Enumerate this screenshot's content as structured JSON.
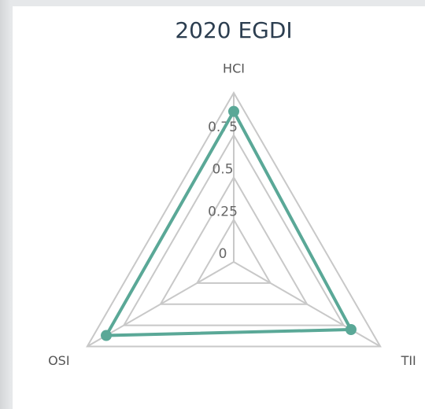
{
  "chart_data": {
    "type": "radar",
    "title": "2020 EGDI",
    "categories": [
      "HCI",
      "TII",
      "OSI"
    ],
    "values": [
      0.89,
      0.8,
      0.87
    ],
    "color": "#5aa897",
    "ylim": [
      0,
      1
    ],
    "yticks": [
      0,
      0.25,
      0.5,
      0.75
    ],
    "grid": true
  }
}
